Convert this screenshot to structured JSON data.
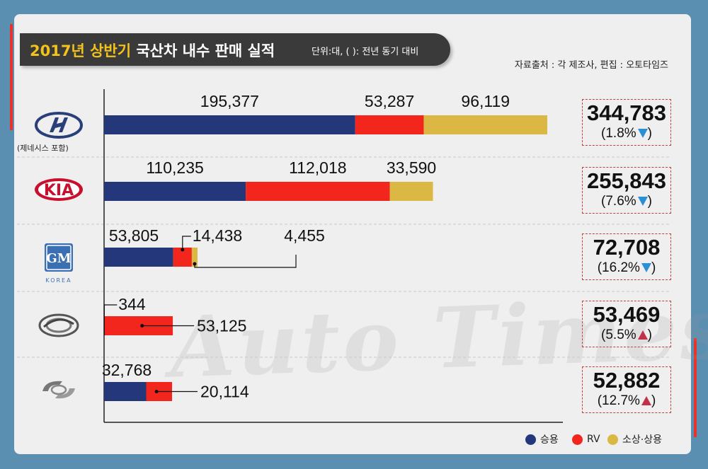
{
  "header": {
    "title_highlight": "2017년 상반기",
    "title_rest": " 국산차 내수 판매 실적",
    "unit": "단위:대, ( ): 전년 동기 대비",
    "source": "자료출처 : 각 제조사, 편집 : 오토타임즈"
  },
  "watermark": "Auto Times",
  "brands": [
    {
      "icon": "hyundai-logo-icon",
      "note": "(제네시스 포함)"
    },
    {
      "icon": "kia-logo-icon",
      "logo_text": "KIA"
    },
    {
      "icon": "gm-korea-logo-icon",
      "logo_text": "GM",
      "logo_sub": "KOREA"
    },
    {
      "icon": "ssangyong-logo-icon"
    },
    {
      "icon": "renault-samsung-logo-icon"
    }
  ],
  "colors": {
    "passenger": "#24377a",
    "rv": "#f2261c",
    "commercial": "#dbb843"
  },
  "legend": [
    {
      "label": "승용",
      "color": "#24377a"
    },
    {
      "label": "RV",
      "color": "#f2261c"
    },
    {
      "label": "소상·상용",
      "color": "#dbb843"
    }
  ],
  "chart_data": {
    "type": "bar",
    "orientation": "horizontal",
    "stacked": true,
    "categories": [
      "",
      "",
      "",
      "",
      ""
    ],
    "series": [
      {
        "name": "승용",
        "values": [
          195377,
          110235,
          53805,
          344,
          32768
        ],
        "labels": [
          "195,377",
          "110,235",
          "53,805",
          "344",
          "32,768"
        ]
      },
      {
        "name": "RV",
        "values": [
          53287,
          112018,
          14438,
          53125,
          20114
        ],
        "labels": [
          "53,287",
          "112,018",
          "14,438",
          "53,125",
          "20,114"
        ]
      },
      {
        "name": "소상·상용",
        "values": [
          96119,
          33590,
          4455,
          0,
          0
        ],
        "labels": [
          "96,119",
          "33,590",
          "4,455",
          "",
          ""
        ]
      }
    ],
    "totals": [
      "344,783",
      "255,843",
      "72,708",
      "53,469",
      "52,882"
    ],
    "changes": [
      {
        "text": "(1.8%",
        "dir": "down"
      },
      {
        "text": "(7.6%",
        "dir": "down"
      },
      {
        "text": "(16.2%",
        "dir": "down"
      },
      {
        "text": "(5.5%",
        "dir": "up"
      },
      {
        "text": "(12.7%",
        "dir": "up"
      }
    ],
    "change_close": ")",
    "xlim": [
      0,
      350000
    ],
    "grid": false,
    "legend_position": "bottom-right"
  }
}
